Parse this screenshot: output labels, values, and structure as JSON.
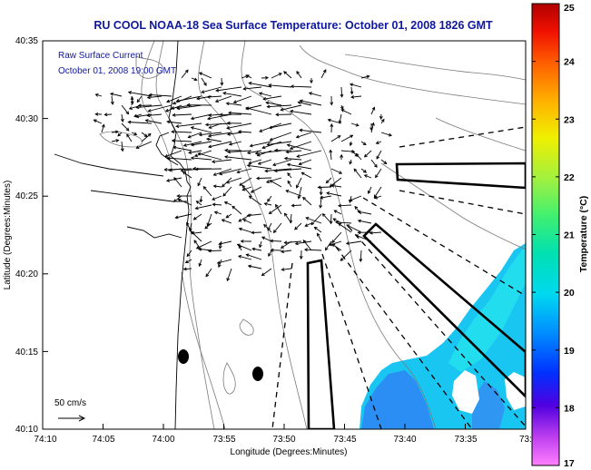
{
  "title": "RU COOL  NOAA-18  Sea Surface Temperature:  October 01, 2008 1826 GMT",
  "annotations": {
    "line1": "Raw Surface Current",
    "line2": "October 01, 2008 19:00 GMT"
  },
  "scale_label": "50 cm/s",
  "axes": {
    "xlabel": "Longitude (Degrees:Minutes)",
    "ylabel": "Latitude (Degrees:Minutes)",
    "x_ticks": [
      "74:10",
      "74:05",
      "74:00",
      "73:55",
      "73:50",
      "73:45",
      "73:40",
      "73:35",
      "73:3"
    ],
    "y_ticks": [
      "40:35",
      "40:30",
      "40:25",
      "40:20",
      "40:15",
      "40:10"
    ]
  },
  "colorbar": {
    "label": "Temperature (°C)",
    "ticks": [
      "25",
      "24",
      "23",
      "22",
      "21",
      "20",
      "19",
      "18",
      "17"
    ],
    "range": [
      17,
      25
    ]
  },
  "colors": {
    "title": "#10189c",
    "frame": "#000000",
    "contour": "#7a7a7a",
    "land_fill": "#ffffff",
    "vector": "#000000"
  }
}
